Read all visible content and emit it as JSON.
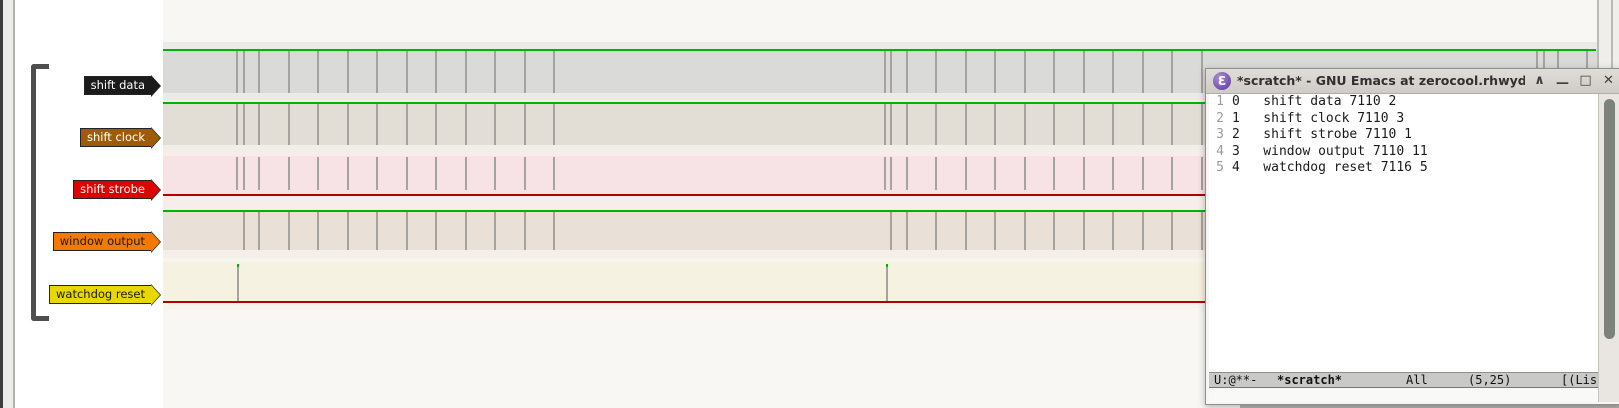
{
  "waveform": {
    "tick_color": "#a6a39e",
    "high_color": "#00b300",
    "low_color": "#b30000",
    "signals": [
      {
        "index": 0,
        "name": "shift data",
        "flag_bg": "#1b1b1b",
        "flag_fg": "#ffffff",
        "trace_color": "#00b300",
        "state": "high",
        "ticks": [
          236,
          243,
          258,
          288,
          317,
          347,
          376,
          406,
          435,
          465,
          494,
          524,
          553,
          884,
          890,
          906,
          935,
          965,
          994,
          1024,
          1053,
          1083,
          1112,
          1142,
          1171,
          1201,
          1536,
          1543,
          1557,
          1586
        ]
      },
      {
        "index": 1,
        "name": "shift clock",
        "flag_bg": "#9e5c08",
        "flag_fg": "#ffffff",
        "trace_color": "#00b300",
        "state": "high",
        "ticks": [
          236,
          243,
          258,
          288,
          317,
          347,
          376,
          406,
          435,
          465,
          494,
          524,
          553,
          884,
          890,
          906,
          935,
          965,
          994,
          1024,
          1053,
          1083,
          1112,
          1142,
          1171,
          1201,
          1536,
          1543,
          1557,
          1586
        ]
      },
      {
        "index": 2,
        "name": "shift strobe",
        "flag_bg": "#dc0400",
        "flag_fg": "#ffffff",
        "trace_color": "#b30000",
        "state": "low",
        "ticks": [
          236,
          243,
          258,
          288,
          317,
          347,
          376,
          406,
          435,
          465,
          494,
          524,
          553,
          884,
          890,
          906,
          935,
          965,
          994,
          1024,
          1053,
          1083,
          1112,
          1142,
          1171,
          1201,
          1536,
          1543,
          1557,
          1586
        ]
      },
      {
        "index": 3,
        "name": "window output",
        "flag_bg": "#f57900",
        "flag_fg": "#1a1a1a",
        "trace_color": "#00b300",
        "state": "high",
        "ticks": [
          243,
          258,
          288,
          317,
          347,
          376,
          406,
          435,
          465,
          494,
          524,
          553,
          890,
          906,
          935,
          965,
          994,
          1024,
          1053,
          1083,
          1112,
          1142,
          1171,
          1201,
          1543,
          1557,
          1586
        ]
      },
      {
        "index": 4,
        "name": "watchdog reset",
        "flag_bg": "#e9d700",
        "flag_fg": "#1a1a1a",
        "trace_color": "#b30000",
        "state": "low",
        "spike_cap_color": "#00b300",
        "ticks": [
          237,
          886
        ]
      }
    ]
  },
  "emacs": {
    "title": "*scratch* - GNU Emacs at zerocool.rhwyd.co",
    "icon_glyph": "Ɛ",
    "buttons": {
      "shade": "∧",
      "minimize": "—",
      "maximize": "□",
      "close": "✕"
    },
    "lines": [
      {
        "num": "1",
        "text": "0   shift data 7110 2"
      },
      {
        "num": "2",
        "text": "1   shift clock 7110 3"
      },
      {
        "num": "3",
        "text": "2   shift strobe 7110 1"
      },
      {
        "num": "4",
        "text": "3   window output 7110 11"
      },
      {
        "num": "5",
        "text": "4   watchdog reset 7116 5"
      }
    ],
    "modeline": {
      "coding": "U:@**-",
      "buffer": "*scratch*",
      "scroll": "All",
      "position": "(5,25)",
      "mode": "[(Lisp"
    }
  }
}
